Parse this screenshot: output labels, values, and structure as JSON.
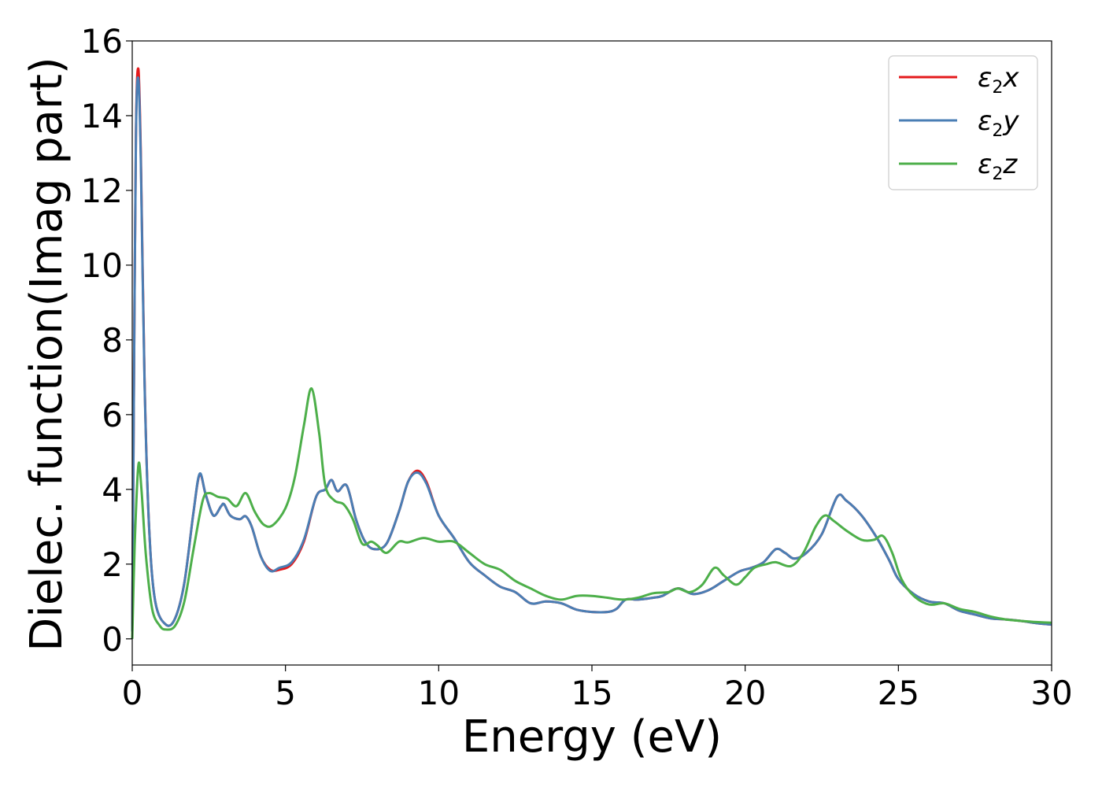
{
  "chart_data": {
    "type": "line",
    "xlabel": "Energy (eV)",
    "ylabel": "Dielec. function(Imag part)",
    "xlim": [
      0,
      30
    ],
    "ylim": [
      -0.7,
      16
    ],
    "xticks": [
      "0",
      "5",
      "10",
      "15",
      "20",
      "25",
      "30"
    ],
    "yticks": [
      "0",
      "2",
      "4",
      "6",
      "8",
      "10",
      "12",
      "14",
      "16"
    ],
    "grid": false,
    "legend_position": "top-right",
    "series": [
      {
        "name": "ε2x",
        "legend_main": "ε",
        "legend_sub": "2",
        "legend_tail": "x",
        "color": "#e41a1c",
        "points": [
          [
            0,
            0.2
          ],
          [
            0.05,
            6
          ],
          [
            0.12,
            13.5
          ],
          [
            0.2,
            15.25
          ],
          [
            0.28,
            13
          ],
          [
            0.4,
            7
          ],
          [
            0.55,
            3
          ],
          [
            0.75,
            1
          ],
          [
            1.1,
            0.38
          ],
          [
            1.4,
            0.55
          ],
          [
            1.7,
            1.5
          ],
          [
            2.0,
            3.4
          ],
          [
            2.2,
            4.4
          ],
          [
            2.4,
            3.85
          ],
          [
            2.65,
            3.3
          ],
          [
            2.9,
            3.55
          ],
          [
            3.0,
            3.6
          ],
          [
            3.2,
            3.3
          ],
          [
            3.5,
            3.2
          ],
          [
            3.7,
            3.28
          ],
          [
            3.9,
            3.0
          ],
          [
            4.2,
            2.2
          ],
          [
            4.5,
            1.85
          ],
          [
            4.8,
            1.85
          ],
          [
            5.2,
            2.0
          ],
          [
            5.6,
            2.6
          ],
          [
            6.0,
            3.8
          ],
          [
            6.3,
            4.0
          ],
          [
            6.5,
            4.25
          ],
          [
            6.7,
            3.95
          ],
          [
            7.0,
            4.1
          ],
          [
            7.3,
            3.2
          ],
          [
            7.6,
            2.6
          ],
          [
            7.9,
            2.4
          ],
          [
            8.3,
            2.55
          ],
          [
            8.7,
            3.4
          ],
          [
            9.0,
            4.2
          ],
          [
            9.3,
            4.5
          ],
          [
            9.6,
            4.2
          ],
          [
            10.0,
            3.3
          ],
          [
            10.5,
            2.7
          ],
          [
            11.0,
            2.05
          ],
          [
            11.5,
            1.7
          ],
          [
            12.0,
            1.4
          ],
          [
            12.5,
            1.25
          ],
          [
            13.0,
            0.95
          ],
          [
            13.5,
            1.0
          ],
          [
            14.0,
            0.95
          ],
          [
            14.5,
            0.78
          ],
          [
            15.0,
            0.72
          ],
          [
            15.5,
            0.72
          ],
          [
            15.8,
            0.8
          ],
          [
            16.1,
            1.05
          ],
          [
            16.5,
            1.05
          ],
          [
            17.0,
            1.1
          ],
          [
            17.3,
            1.15
          ],
          [
            17.8,
            1.35
          ],
          [
            18.3,
            1.2
          ],
          [
            18.8,
            1.3
          ],
          [
            19.3,
            1.55
          ],
          [
            19.8,
            1.8
          ],
          [
            20.2,
            1.9
          ],
          [
            20.6,
            2.05
          ],
          [
            21.0,
            2.4
          ],
          [
            21.3,
            2.3
          ],
          [
            21.6,
            2.15
          ],
          [
            22.0,
            2.3
          ],
          [
            22.5,
            2.8
          ],
          [
            23.0,
            3.8
          ],
          [
            23.3,
            3.7
          ],
          [
            23.8,
            3.3
          ],
          [
            24.3,
            2.7
          ],
          [
            24.7,
            2.1
          ],
          [
            25.0,
            1.6
          ],
          [
            25.5,
            1.2
          ],
          [
            26.0,
            1.0
          ],
          [
            26.5,
            0.95
          ],
          [
            27.0,
            0.75
          ],
          [
            27.5,
            0.65
          ],
          [
            28.0,
            0.55
          ],
          [
            28.5,
            0.52
          ],
          [
            29.0,
            0.48
          ],
          [
            29.5,
            0.42
          ],
          [
            30.0,
            0.38
          ]
        ]
      },
      {
        "name": "ε2y",
        "legend_main": "ε",
        "legend_sub": "2",
        "legend_tail": "y",
        "color": "#4a7eb4",
        "points": [
          [
            0,
            0.2
          ],
          [
            0.05,
            6
          ],
          [
            0.12,
            13.4
          ],
          [
            0.2,
            15.0
          ],
          [
            0.28,
            12.8
          ],
          [
            0.4,
            6.9
          ],
          [
            0.55,
            3
          ],
          [
            0.75,
            1
          ],
          [
            1.1,
            0.38
          ],
          [
            1.4,
            0.55
          ],
          [
            1.7,
            1.5
          ],
          [
            2.0,
            3.4
          ],
          [
            2.2,
            4.42
          ],
          [
            2.4,
            3.85
          ],
          [
            2.65,
            3.3
          ],
          [
            2.9,
            3.55
          ],
          [
            3.0,
            3.6
          ],
          [
            3.2,
            3.3
          ],
          [
            3.5,
            3.2
          ],
          [
            3.7,
            3.28
          ],
          [
            3.9,
            3.0
          ],
          [
            4.2,
            2.2
          ],
          [
            4.5,
            1.82
          ],
          [
            4.8,
            1.9
          ],
          [
            5.2,
            2.05
          ],
          [
            5.6,
            2.65
          ],
          [
            6.0,
            3.8
          ],
          [
            6.3,
            4.0
          ],
          [
            6.5,
            4.25
          ],
          [
            6.7,
            3.95
          ],
          [
            7.0,
            4.1
          ],
          [
            7.3,
            3.2
          ],
          [
            7.6,
            2.6
          ],
          [
            7.9,
            2.4
          ],
          [
            8.3,
            2.55
          ],
          [
            8.7,
            3.4
          ],
          [
            9.0,
            4.2
          ],
          [
            9.3,
            4.45
          ],
          [
            9.6,
            4.15
          ],
          [
            10.0,
            3.3
          ],
          [
            10.5,
            2.7
          ],
          [
            11.0,
            2.05
          ],
          [
            11.5,
            1.7
          ],
          [
            12.0,
            1.4
          ],
          [
            12.5,
            1.25
          ],
          [
            13.0,
            0.95
          ],
          [
            13.5,
            1.0
          ],
          [
            14.0,
            0.95
          ],
          [
            14.5,
            0.78
          ],
          [
            15.0,
            0.72
          ],
          [
            15.5,
            0.72
          ],
          [
            15.8,
            0.8
          ],
          [
            16.1,
            1.05
          ],
          [
            16.5,
            1.05
          ],
          [
            17.0,
            1.1
          ],
          [
            17.3,
            1.15
          ],
          [
            17.8,
            1.35
          ],
          [
            18.3,
            1.2
          ],
          [
            18.8,
            1.3
          ],
          [
            19.3,
            1.55
          ],
          [
            19.8,
            1.8
          ],
          [
            20.2,
            1.9
          ],
          [
            20.6,
            2.05
          ],
          [
            21.0,
            2.4
          ],
          [
            21.3,
            2.3
          ],
          [
            21.6,
            2.15
          ],
          [
            22.0,
            2.3
          ],
          [
            22.5,
            2.8
          ],
          [
            23.0,
            3.8
          ],
          [
            23.3,
            3.7
          ],
          [
            23.8,
            3.3
          ],
          [
            24.3,
            2.7
          ],
          [
            24.7,
            2.1
          ],
          [
            25.0,
            1.6
          ],
          [
            25.5,
            1.2
          ],
          [
            26.0,
            1.0
          ],
          [
            26.5,
            0.95
          ],
          [
            27.0,
            0.75
          ],
          [
            27.5,
            0.65
          ],
          [
            28.0,
            0.55
          ],
          [
            28.5,
            0.52
          ],
          [
            29.0,
            0.48
          ],
          [
            29.5,
            0.42
          ],
          [
            30.0,
            0.38
          ]
        ]
      },
      {
        "name": "ε2z",
        "legend_main": "ε",
        "legend_sub": "2",
        "legend_tail": "z",
        "color": "#4daf4a",
        "points": [
          [
            0,
            0
          ],
          [
            0.08,
            2.5
          ],
          [
            0.2,
            4.65
          ],
          [
            0.3,
            4.0
          ],
          [
            0.45,
            2.2
          ],
          [
            0.65,
            0.8
          ],
          [
            0.9,
            0.35
          ],
          [
            1.1,
            0.25
          ],
          [
            1.4,
            0.35
          ],
          [
            1.7,
            1.0
          ],
          [
            2.0,
            2.4
          ],
          [
            2.3,
            3.7
          ],
          [
            2.5,
            3.9
          ],
          [
            2.8,
            3.8
          ],
          [
            3.1,
            3.75
          ],
          [
            3.4,
            3.55
          ],
          [
            3.7,
            3.9
          ],
          [
            4.0,
            3.4
          ],
          [
            4.3,
            3.05
          ],
          [
            4.6,
            3.05
          ],
          [
            5.0,
            3.5
          ],
          [
            5.3,
            4.3
          ],
          [
            5.6,
            5.7
          ],
          [
            5.85,
            6.7
          ],
          [
            6.1,
            5.5
          ],
          [
            6.3,
            4.1
          ],
          [
            6.6,
            3.7
          ],
          [
            6.9,
            3.6
          ],
          [
            7.2,
            3.2
          ],
          [
            7.5,
            2.55
          ],
          [
            7.8,
            2.6
          ],
          [
            8.0,
            2.5
          ],
          [
            8.3,
            2.3
          ],
          [
            8.7,
            2.6
          ],
          [
            9.0,
            2.58
          ],
          [
            9.5,
            2.7
          ],
          [
            10.0,
            2.6
          ],
          [
            10.5,
            2.6
          ],
          [
            11.0,
            2.3
          ],
          [
            11.5,
            2.0
          ],
          [
            12.0,
            1.85
          ],
          [
            12.5,
            1.55
          ],
          [
            13.0,
            1.35
          ],
          [
            13.5,
            1.15
          ],
          [
            14.0,
            1.05
          ],
          [
            14.5,
            1.15
          ],
          [
            15.0,
            1.15
          ],
          [
            15.5,
            1.1
          ],
          [
            16.0,
            1.05
          ],
          [
            16.5,
            1.1
          ],
          [
            17.0,
            1.22
          ],
          [
            17.5,
            1.25
          ],
          [
            17.8,
            1.35
          ],
          [
            18.2,
            1.25
          ],
          [
            18.6,
            1.45
          ],
          [
            19.0,
            1.9
          ],
          [
            19.3,
            1.7
          ],
          [
            19.7,
            1.45
          ],
          [
            20.0,
            1.65
          ],
          [
            20.3,
            1.9
          ],
          [
            20.7,
            2.0
          ],
          [
            21.0,
            2.05
          ],
          [
            21.5,
            1.95
          ],
          [
            21.9,
            2.3
          ],
          [
            22.3,
            3.0
          ],
          [
            22.6,
            3.3
          ],
          [
            22.9,
            3.15
          ],
          [
            23.3,
            2.9
          ],
          [
            23.8,
            2.65
          ],
          [
            24.2,
            2.65
          ],
          [
            24.5,
            2.75
          ],
          [
            24.8,
            2.3
          ],
          [
            25.1,
            1.6
          ],
          [
            25.5,
            1.15
          ],
          [
            26.0,
            0.92
          ],
          [
            26.5,
            0.95
          ],
          [
            27.0,
            0.8
          ],
          [
            27.5,
            0.72
          ],
          [
            28.0,
            0.6
          ],
          [
            28.5,
            0.52
          ],
          [
            29.0,
            0.48
          ],
          [
            29.5,
            0.45
          ],
          [
            30.0,
            0.43
          ]
        ]
      }
    ]
  }
}
